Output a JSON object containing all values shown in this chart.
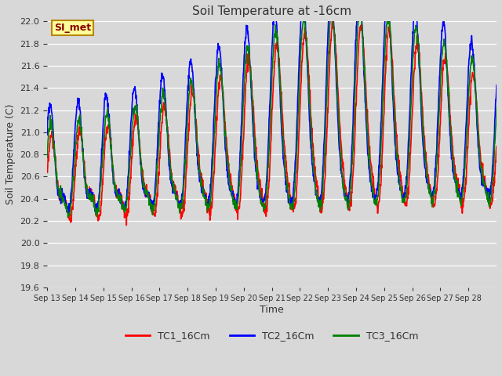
{
  "title": "Soil Temperature at -16cm",
  "xlabel": "Time",
  "ylabel": "Soil Temperature (C)",
  "ylim": [
    19.6,
    22.0
  ],
  "x_tick_labels": [
    "Sep 13",
    "Sep 14",
    "Sep 15",
    "Sep 16",
    "Sep 17",
    "Sep 18",
    "Sep 19",
    "Sep 20",
    "Sep 21",
    "Sep 22",
    "Sep 23",
    "Sep 24",
    "Sep 25",
    "Sep 26",
    "Sep 27",
    "Sep 28"
  ],
  "bg_color": "#d8d8d8",
  "grid_color": "#ffffff",
  "legend_label_1": "TC1_16Cm",
  "legend_label_2": "TC2_16Cm",
  "legend_label_3": "TC3_16Cm",
  "line_color_1": "red",
  "line_color_2": "blue",
  "line_color_3": "green",
  "annotation_text": "SI_met",
  "annotation_color": "#8b0000",
  "annotation_bg": "#ffff99",
  "annotation_border": "#b8860b",
  "title_fontsize": 11,
  "axis_label_fontsize": 9,
  "tick_fontsize": 7,
  "legend_fontsize": 9,
  "linewidth": 1.2
}
